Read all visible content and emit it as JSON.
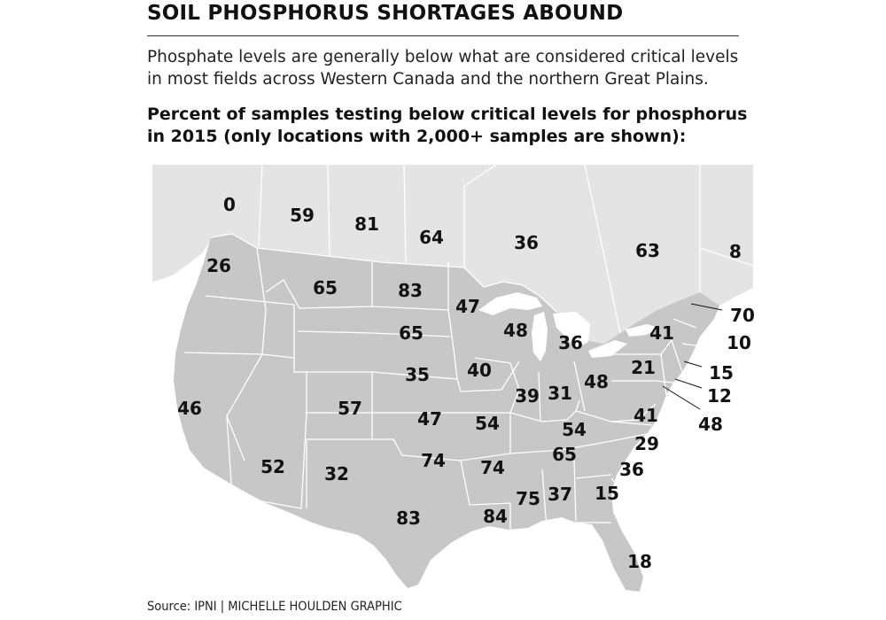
{
  "title": "SOIL PHOSPHORUS SHORTAGES ABOUND",
  "description": "Phosphate levels are generally below what are considered critical levels in most fields across Western Canada and the northern Great Plains.",
  "subtitle": "Percent of samples testing below critical levels for phosphorus in 2015 (only locations with 2,000+ samples are shown):",
  "source": "Source: IPNI  |  MICHELLE HOULDEN GRAPHIC",
  "colors": {
    "land_canada": "#e4e4e4",
    "land_us": "#c7c7c7",
    "water": "#ffffff",
    "border": "#ffffff",
    "label": "#111111"
  },
  "regions": [
    {
      "id": "yukon",
      "country": "Canada",
      "value": "0"
    },
    {
      "id": "northwest-territories",
      "country": "Canada",
      "value": "59"
    },
    {
      "id": "nunavut",
      "country": "Canada",
      "value": "81"
    },
    {
      "id": "british-columbia",
      "country": "Canada",
      "value": "26"
    },
    {
      "id": "alberta",
      "country": "Canada",
      "value": "65"
    },
    {
      "id": "saskatchewan",
      "country": "Canada",
      "value": "83"
    },
    {
      "id": "manitoba",
      "country": "Canada",
      "value": "64"
    },
    {
      "id": "ontario",
      "country": "Canada",
      "value": "36"
    },
    {
      "id": "quebec",
      "country": "Canada",
      "value": "63"
    },
    {
      "id": "labrador",
      "country": "Canada",
      "value": "8"
    },
    {
      "id": "washington",
      "country": "US",
      "value": ""
    },
    {
      "id": "montana",
      "country": "US",
      "value": ""
    },
    {
      "id": "north-dakota",
      "country": "US",
      "value": "65"
    },
    {
      "id": "minnesota",
      "country": "US",
      "value": "47"
    },
    {
      "id": "wisconsin",
      "country": "US",
      "value": "48"
    },
    {
      "id": "michigan",
      "country": "US",
      "value": "36"
    },
    {
      "id": "south-dakota",
      "country": "US",
      "value": "35"
    },
    {
      "id": "iowa",
      "country": "US",
      "value": "40"
    },
    {
      "id": "illinois",
      "country": "US",
      "value": "39"
    },
    {
      "id": "indiana",
      "country": "US",
      "value": "31"
    },
    {
      "id": "ohio",
      "country": "US",
      "value": "48"
    },
    {
      "id": "new-york",
      "country": "US",
      "value": "41"
    },
    {
      "id": "pennsylvania",
      "country": "US",
      "value": "21"
    },
    {
      "id": "california",
      "country": "US",
      "value": "46"
    },
    {
      "id": "colorado",
      "country": "US",
      "value": "57"
    },
    {
      "id": "kansas",
      "country": "US",
      "value": "47"
    },
    {
      "id": "missouri",
      "country": "US",
      "value": "54"
    },
    {
      "id": "kentucky",
      "country": "US",
      "value": "54"
    },
    {
      "id": "virginia",
      "country": "US",
      "value": "41"
    },
    {
      "id": "arizona",
      "country": "US",
      "value": "52"
    },
    {
      "id": "new-mexico",
      "country": "US",
      "value": "32"
    },
    {
      "id": "oklahoma",
      "country": "US",
      "value": "74"
    },
    {
      "id": "arkansas",
      "country": "US",
      "value": "74"
    },
    {
      "id": "tennessee",
      "country": "US",
      "value": "65"
    },
    {
      "id": "north-carolina",
      "country": "US",
      "value": "29"
    },
    {
      "id": "south-carolina",
      "country": "US",
      "value": "36"
    },
    {
      "id": "texas",
      "country": "US",
      "value": "83"
    },
    {
      "id": "louisiana",
      "country": "US",
      "value": "84"
    },
    {
      "id": "mississippi",
      "country": "US",
      "value": "75"
    },
    {
      "id": "alabama",
      "country": "US",
      "value": "37"
    },
    {
      "id": "georgia",
      "country": "US",
      "value": "15"
    },
    {
      "id": "florida",
      "country": "US",
      "value": "18"
    },
    {
      "id": "vermont",
      "country": "US",
      "value": "70"
    },
    {
      "id": "massachusetts",
      "country": "US",
      "value": "10"
    },
    {
      "id": "connecticut",
      "country": "US",
      "value": "15"
    },
    {
      "id": "new-jersey",
      "country": "US",
      "value": "12"
    },
    {
      "id": "delaware",
      "country": "US",
      "value": "48"
    }
  ]
}
